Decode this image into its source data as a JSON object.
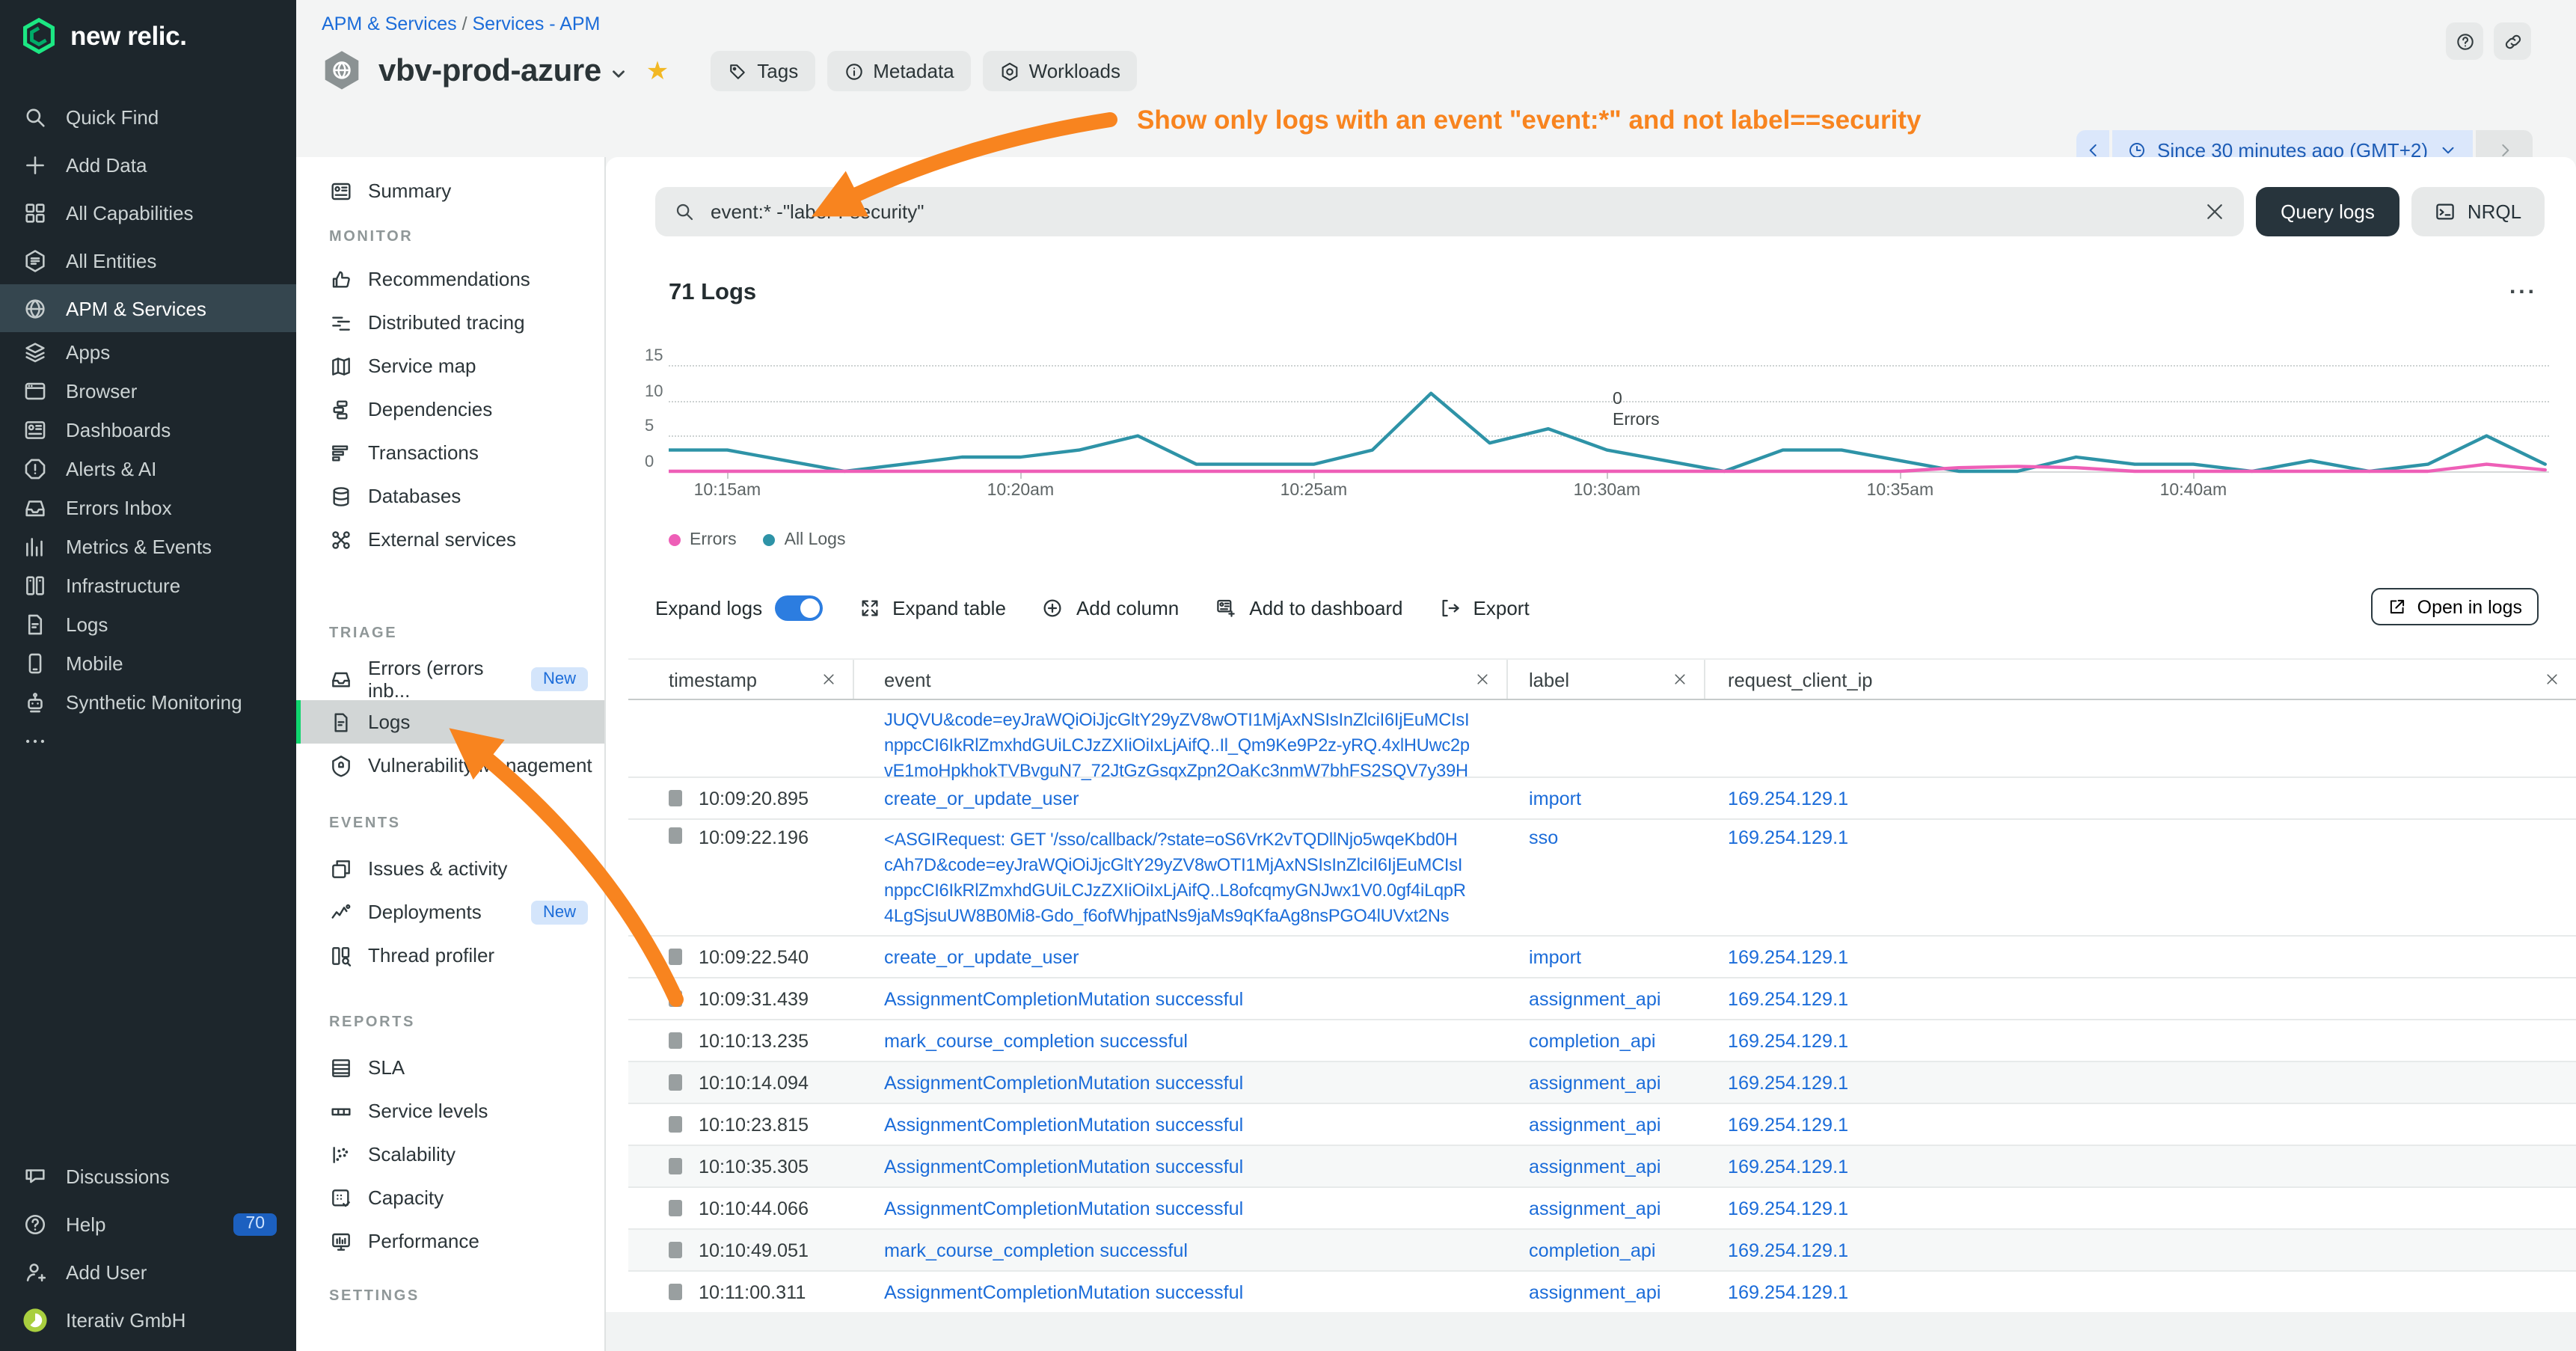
{
  "colors": {
    "brand_green": "#1ce783",
    "link_blue": "#1b6cd9",
    "errors_pink": "#ee5fb7",
    "all_logs_teal": "#2e93a7",
    "annotation_orange": "#f8841f",
    "selected_green_bar": "#10d56e",
    "toggle_blue": "#2c7de0"
  },
  "global_nav": {
    "logo_text": "new relic.",
    "primary": [
      {
        "label": "Quick Find",
        "icon": "search"
      },
      {
        "label": "Add Data",
        "icon": "plus"
      },
      {
        "label": "All Capabilities",
        "icon": "grid"
      },
      {
        "label": "All Entities",
        "icon": "hexlist"
      },
      {
        "label": "APM & Services",
        "icon": "globe",
        "selected": true
      }
    ],
    "secondary": [
      {
        "label": "Apps",
        "icon": "layers"
      },
      {
        "label": "Browser",
        "icon": "browser"
      },
      {
        "label": "Dashboards",
        "icon": "dashboard"
      },
      {
        "label": "Alerts & AI",
        "icon": "alert"
      },
      {
        "label": "Errors Inbox",
        "icon": "inbox"
      },
      {
        "label": "Metrics & Events",
        "icon": "barchart"
      },
      {
        "label": "Infrastructure",
        "icon": "servers"
      },
      {
        "label": "Logs",
        "icon": "logfile"
      },
      {
        "label": "Mobile",
        "icon": "mobile"
      },
      {
        "label": "Synthetic Monitoring",
        "icon": "robot"
      },
      {
        "label": "",
        "icon": "ellipsis"
      }
    ],
    "bottom": [
      {
        "label": "Discussions",
        "icon": "chat"
      },
      {
        "label": "Help",
        "icon": "question",
        "badge": "70"
      },
      {
        "label": "Add User",
        "icon": "userplus"
      },
      {
        "label": "Iterativ GmbH",
        "icon": "avatar"
      }
    ]
  },
  "subnav": {
    "sections": [
      {
        "title": "",
        "slug": "top",
        "items": [
          {
            "label": "Summary",
            "icon": "summary"
          }
        ]
      },
      {
        "title": "MONITOR",
        "slug": "monitor",
        "items": [
          {
            "label": "Recommendations",
            "icon": "thumbsup"
          },
          {
            "label": "Distributed tracing",
            "icon": "tracing"
          },
          {
            "label": "Service map",
            "icon": "map"
          },
          {
            "label": "Dependencies",
            "icon": "deps"
          },
          {
            "label": "Transactions",
            "icon": "transactions"
          },
          {
            "label": "Databases",
            "icon": "database"
          },
          {
            "label": "External services",
            "icon": "network"
          }
        ]
      },
      {
        "title": "TRIAGE",
        "slug": "triage",
        "items": [
          {
            "label": "Errors (errors inb...",
            "icon": "inbox",
            "badge": "New"
          },
          {
            "label": "Logs",
            "icon": "logfile",
            "selected": true
          },
          {
            "label": "Vulnerability Management",
            "icon": "shield"
          }
        ]
      },
      {
        "title": "EVENTS",
        "slug": "events",
        "items": [
          {
            "label": "Issues & activity",
            "icon": "copy"
          },
          {
            "label": "Deployments",
            "icon": "deploy",
            "badge": "New"
          },
          {
            "label": "Thread profiler",
            "icon": "thread"
          }
        ]
      },
      {
        "title": "REPORTS",
        "slug": "reports",
        "items": [
          {
            "label": "SLA",
            "icon": "sla"
          },
          {
            "label": "Service levels",
            "icon": "levels"
          },
          {
            "label": "Scalability",
            "icon": "scatter"
          },
          {
            "label": "Capacity",
            "icon": "capacity"
          },
          {
            "label": "Performance",
            "icon": "monitor"
          }
        ]
      },
      {
        "title": "SETTINGS",
        "slug": "settings",
        "items": []
      }
    ]
  },
  "header": {
    "breadcrumb": {
      "part1": "APM & Services",
      "sep": "/",
      "part2": "Services - APM"
    },
    "entity_title": "vbv-prod-azure",
    "chips": [
      {
        "label": "Tags",
        "icon": "tag"
      },
      {
        "label": "Metadata",
        "icon": "info"
      },
      {
        "label": "Workloads",
        "icon": "workload"
      }
    ],
    "time_picker_label": "Since 30 minutes ago (GMT+2)"
  },
  "annotation": {
    "text": "Show only logs with an event \"event:*\" and not label==security"
  },
  "query_bar": {
    "query": "event:* -\"label\":\"security\"",
    "query_button": "Query logs",
    "nrql_button": "NRQL"
  },
  "logs_section": {
    "title": "71 Logs",
    "menu_glyph": "...",
    "hover_annotation": {
      "value": "0",
      "label": "Errors"
    },
    "toolbar": [
      {
        "label": "Expand logs",
        "control": "toggle"
      },
      {
        "label": "Expand table",
        "icon": "expand"
      },
      {
        "label": "Add column",
        "icon": "pluscircle"
      },
      {
        "label": "Add to dashboard",
        "icon": "dashadd"
      },
      {
        "label": "Export",
        "icon": "export"
      }
    ],
    "open_in_logs": "Open in logs"
  },
  "chart_data": {
    "type": "line",
    "title": "71 Logs",
    "x_start": "10:14am",
    "x_step_minutes": 1,
    "x_tick_labels": [
      "10:15am",
      "10:20am",
      "10:25am",
      "10:30am",
      "10:35am",
      "10:40am"
    ],
    "x_tick_minutes": [
      1,
      6,
      11,
      16,
      21,
      26
    ],
    "ylim": [
      0,
      15
    ],
    "y_ticks": [
      15,
      10,
      5,
      0
    ],
    "grid": "horizontal dotted",
    "legend_position": "bottom-left",
    "series": [
      {
        "name": "All Logs",
        "color": "#2e93a7",
        "values": [
          3,
          3,
          1.5,
          0,
          1,
          2,
          2,
          3,
          5,
          1,
          1,
          1,
          3,
          11,
          4,
          6,
          3,
          1.5,
          0,
          3,
          3,
          1.5,
          0,
          0,
          2,
          1,
          1,
          0,
          1.5,
          0,
          1,
          5,
          1
        ]
      },
      {
        "name": "Errors",
        "color": "#ee5fb7",
        "values": [
          0,
          0,
          0,
          0,
          0,
          0,
          0,
          0,
          0,
          0,
          0,
          0,
          0,
          0,
          0,
          0,
          0,
          0,
          0,
          0,
          0,
          0,
          0.5,
          0.7,
          0.5,
          0,
          0,
          0,
          0,
          0,
          0,
          1,
          0.2
        ]
      }
    ]
  },
  "table": {
    "columns": [
      {
        "key": "ts",
        "label": "timestamp",
        "closable": true
      },
      {
        "key": "ev",
        "label": "event",
        "closable": true
      },
      {
        "key": "lb",
        "label": "label",
        "closable": true
      },
      {
        "key": "ip",
        "label": "request_client_ip",
        "closable": true
      }
    ],
    "rows": [
      {
        "timestamp": "",
        "event_lines": [
          "JUQVU&code=eyJraWQiOiJjcGltY29yZV8wOTI1MjAxNSIsInZlciI6IjEuMCIsI",
          "nppcCI6IkRlZmxhdGUiLCJzZXIiOiIxLjAifQ..Il_Qm9Ke9P2z-yRQ.4xlHUwc2p",
          "vE1moHpkhokTVBvguN7_72JtGzGsqxZpn2OaKc3nmW7bhFS2SQV7y39H"
        ],
        "label": "",
        "ip": ""
      },
      {
        "timestamp": "10:09:20.895",
        "event_lines": [
          "create_or_update_user"
        ],
        "label": "import",
        "ip": "169.254.129.1"
      },
      {
        "timestamp": "10:09:22.196",
        "event_lines": [
          "<ASGIRequest: GET '/sso/callback/?state=oS6VrK2vTQDllNjo5wqeKbd0H",
          "cAh7D&code=eyJraWQiOiJjcGltY29yZV8wOTI1MjAxNSIsInZlciI6IjEuMCIsI",
          "nppcCI6IkRlZmxhdGUiLCJzZXIiOiIxLjAifQ..L8ofcqmyGNJwx1V0.0gf4iLqpR",
          "4LgSjsuUW8B0Mi8-Gdo_f6ofWhjpatNs9jaMs9qKfaAg8nsPGO4lUVxt2Ns"
        ],
        "label": "sso",
        "ip": "169.254.129.1"
      },
      {
        "timestamp": "10:09:22.540",
        "event_lines": [
          "create_or_update_user"
        ],
        "label": "import",
        "ip": "169.254.129.1"
      },
      {
        "timestamp": "10:09:31.439",
        "event_lines": [
          "AssignmentCompletionMutation successful"
        ],
        "label": "assignment_api",
        "ip": "169.254.129.1"
      },
      {
        "timestamp": "10:10:13.235",
        "event_lines": [
          "mark_course_completion successful"
        ],
        "label": "completion_api",
        "ip": "169.254.129.1"
      },
      {
        "timestamp": "10:10:14.094",
        "event_lines": [
          "AssignmentCompletionMutation successful"
        ],
        "label": "assignment_api",
        "ip": "169.254.129.1",
        "shaded": true
      },
      {
        "timestamp": "10:10:23.815",
        "event_lines": [
          "AssignmentCompletionMutation successful"
        ],
        "label": "assignment_api",
        "ip": "169.254.129.1"
      },
      {
        "timestamp": "10:10:35.305",
        "event_lines": [
          "AssignmentCompletionMutation successful"
        ],
        "label": "assignment_api",
        "ip": "169.254.129.1",
        "shaded": true
      },
      {
        "timestamp": "10:10:44.066",
        "event_lines": [
          "AssignmentCompletionMutation successful"
        ],
        "label": "assignment_api",
        "ip": "169.254.129.1"
      },
      {
        "timestamp": "10:10:49.051",
        "event_lines": [
          "mark_course_completion successful"
        ],
        "label": "completion_api",
        "ip": "169.254.129.1",
        "shaded": true
      },
      {
        "timestamp": "10:11:00.311",
        "event_lines": [
          "AssignmentCompletionMutation successful"
        ],
        "label": "assignment_api",
        "ip": "169.254.129.1"
      }
    ]
  }
}
